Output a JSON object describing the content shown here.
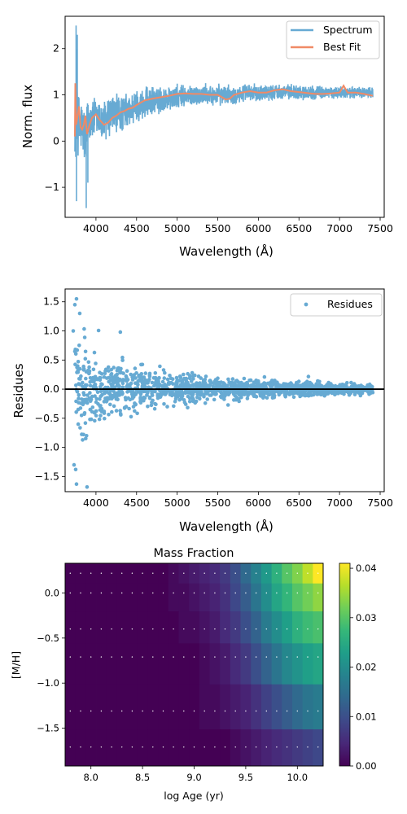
{
  "colors": {
    "spectrum": "#67aad3",
    "best_fit": "#f08a66",
    "residues": "#67aad3",
    "zero_line": "#000000",
    "grid_dots": "#ffffff"
  },
  "chart_data": [
    {
      "type": "line",
      "xlabel": "Wavelength (Å)",
      "ylabel": "Norm. flux",
      "xlim": [
        3620,
        7550
      ],
      "ylim": [
        -1.65,
        2.7
      ],
      "xticks": [
        "4000",
        "4500",
        "5000",
        "5500",
        "6000",
        "6500",
        "7000",
        "7500"
      ],
      "yticks": [
        "−1",
        "0",
        "1",
        "2"
      ],
      "xtick_values": [
        4000,
        4500,
        5000,
        5500,
        6000,
        6500,
        7000,
        7500
      ],
      "ytick_values": [
        -1,
        0,
        1,
        2
      ],
      "legend_position": "upper right",
      "series": [
        {
          "name": "Spectrum",
          "x_range": [
            3740,
            7410
          ],
          "envelope": {
            "x": [
              3740,
              3750,
              3760,
              3780,
              3800,
              3850,
              3880,
              3900,
              3950,
              4000,
              4100,
              4200,
              4300,
              4400,
              4500,
              4700,
              5000,
              5300,
              5600,
              6000,
              6300,
              6600,
              7000,
              7410
            ],
            "mean": [
              0.3,
              0.45,
              1.2,
              0.4,
              0.3,
              0.25,
              -0.1,
              0.55,
              0.45,
              0.5,
              0.4,
              0.55,
              0.6,
              0.65,
              0.75,
              0.85,
              0.95,
              1.0,
              1.0,
              1.05,
              1.08,
              1.05,
              1.05,
              1.05
            ],
            "spread": [
              0.9,
              0.9,
              0.9,
              0.7,
              0.6,
              0.6,
              0.65,
              0.5,
              0.45,
              0.45,
              0.45,
              0.45,
              0.4,
              0.35,
              0.35,
              0.3,
              0.25,
              0.22,
              0.2,
              0.18,
              0.15,
              0.15,
              0.12,
              0.12
            ]
          },
          "min_value": -1.45,
          "max_value": 2.5
        },
        {
          "name": "Best Fit",
          "x": [
            3740,
            3745,
            3755,
            3770,
            3790,
            3810,
            3830,
            3850,
            3870,
            3890,
            3920,
            3950,
            4000,
            4050,
            4100,
            4150,
            4200,
            4250,
            4300,
            4350,
            4400,
            4450,
            4500,
            4600,
            4700,
            4800,
            4900,
            5000,
            5100,
            5200,
            5300,
            5400,
            5500,
            5600,
            5650,
            5700,
            5800,
            5900,
            6000,
            6100,
            6200,
            6300,
            6400,
            6500,
            6600,
            6700,
            6800,
            6900,
            7000,
            7050,
            7100,
            7200,
            7300,
            7410
          ],
          "y": [
            0.1,
            1.25,
            0.35,
            0.5,
            0.75,
            0.3,
            0.25,
            0.35,
            0.55,
            0.15,
            0.35,
            0.5,
            0.58,
            0.45,
            0.35,
            0.4,
            0.5,
            0.55,
            0.62,
            0.65,
            0.7,
            0.72,
            0.78,
            0.88,
            0.92,
            0.95,
            0.98,
            1.02,
            1.03,
            1.02,
            1.02,
            1.0,
            1.0,
            0.9,
            0.92,
            1.0,
            1.05,
            1.08,
            1.05,
            1.05,
            1.1,
            1.12,
            1.08,
            1.06,
            1.04,
            1.02,
            1.02,
            1.03,
            1.05,
            1.2,
            1.05,
            1.05,
            1.02,
            0.98
          ]
        }
      ]
    },
    {
      "type": "scatter",
      "xlabel": "Wavelength (Å)",
      "ylabel": "Residues",
      "xlim": [
        3620,
        7550
      ],
      "ylim": [
        -1.76,
        1.72
      ],
      "xticks": [
        "4000",
        "4500",
        "5000",
        "5500",
        "6000",
        "6500",
        "7000",
        "7500"
      ],
      "yticks": [
        "−1.5",
        "−1.0",
        "−0.5",
        "0.0",
        "0.5",
        "1.0",
        "1.5"
      ],
      "xtick_values": [
        4000,
        4500,
        5000,
        5500,
        6000,
        6500,
        7000,
        7500
      ],
      "ytick_values": [
        -1.5,
        -1.0,
        -0.5,
        0.0,
        0.5,
        1.0,
        1.5
      ],
      "legend_position": "upper right",
      "series": [
        {
          "name": "Residues",
          "x_range": [
            3740,
            7410
          ],
          "spread": {
            "x": [
              3740,
              3800,
              3900,
              4000,
              4300,
              4600,
              5000,
              5500,
              6000,
              6500,
              7000,
              7410
            ],
            "sigma": [
              0.6,
              0.55,
              0.45,
              0.35,
              0.28,
              0.22,
              0.17,
              0.13,
              0.1,
              0.08,
              0.06,
              0.06
            ]
          },
          "extremes": [
            {
              "x": 3760,
              "y": 1.55
            },
            {
              "x": 3740,
              "y": 1.45
            },
            {
              "x": 3800,
              "y": 1.3
            },
            {
              "x": 3750,
              "y": -1.38
            },
            {
              "x": 3760,
              "y": -1.63
            },
            {
              "x": 3890,
              "y": -1.68
            },
            {
              "x": 3730,
              "y": -1.3
            },
            {
              "x": 3720,
              "y": 1.0
            },
            {
              "x": 4300,
              "y": 0.98
            }
          ]
        },
        {
          "name": "",
          "type": "hline",
          "y": 0
        }
      ]
    },
    {
      "type": "heatmap",
      "title": "Mass Fraction",
      "xlabel": "log Age (yr)",
      "ylabel": "[M/H]",
      "xlim": [
        7.75,
        10.25
      ],
      "ylim": [
        -1.92,
        0.33
      ],
      "xticks": [
        "8.0",
        "8.5",
        "9.0",
        "9.5",
        "10.0"
      ],
      "yticks": [
        "−1.5",
        "−1.0",
        "−0.5",
        "0.0"
      ],
      "xtick_values": [
        8.0,
        8.5,
        9.0,
        9.5,
        10.0
      ],
      "ytick_values": [
        -1.5,
        -1.0,
        -0.5,
        0.0
      ],
      "x_centers": [
        7.8,
        7.9,
        8.0,
        8.1,
        8.2,
        8.3,
        8.4,
        8.5,
        8.6,
        8.7,
        8.8,
        8.9,
        9.0,
        9.1,
        9.2,
        9.3,
        9.4,
        9.5,
        9.6,
        9.7,
        9.8,
        9.9,
        10.0,
        10.1,
        10.2
      ],
      "y_centers": [
        -1.71,
        -1.31,
        -0.71,
        -0.4,
        0.0,
        0.22
      ],
      "z": [
        [
          0,
          0,
          0,
          0,
          0,
          0,
          0,
          0,
          0,
          0,
          0,
          0,
          0,
          0,
          0,
          0,
          0.001,
          0.002,
          0.003,
          0.004,
          0.005,
          0.006,
          0.007,
          0.008,
          0.009
        ],
        [
          0,
          0,
          0,
          0,
          0,
          0,
          0,
          0,
          0,
          0,
          0,
          0,
          0,
          0.001,
          0.001,
          0.002,
          0.003,
          0.004,
          0.006,
          0.008,
          0.01,
          0.012,
          0.014,
          0.016,
          0.017
        ],
        [
          0,
          0,
          0,
          0,
          0,
          0,
          0,
          0,
          0,
          0,
          0,
          0,
          0,
          0.001,
          0.002,
          0.003,
          0.005,
          0.007,
          0.01,
          0.013,
          0.016,
          0.019,
          0.021,
          0.023,
          0.024
        ],
        [
          0,
          0,
          0,
          0,
          0,
          0,
          0,
          0,
          0,
          0,
          0,
          0.001,
          0.001,
          0.002,
          0.003,
          0.005,
          0.007,
          0.01,
          0.013,
          0.017,
          0.02,
          0.023,
          0.026,
          0.028,
          0.029
        ],
        [
          0,
          0,
          0,
          0,
          0,
          0,
          0,
          0,
          0,
          0,
          0.001,
          0.001,
          0.002,
          0.003,
          0.004,
          0.006,
          0.009,
          0.012,
          0.016,
          0.02,
          0.024,
          0.027,
          0.03,
          0.032,
          0.034
        ],
        [
          0,
          0,
          0,
          0,
          0,
          0,
          0,
          0,
          0,
          0,
          0.001,
          0.002,
          0.003,
          0.004,
          0.005,
          0.007,
          0.01,
          0.014,
          0.018,
          0.022,
          0.026,
          0.03,
          0.033,
          0.037,
          0.041
        ]
      ],
      "colorbar": {
        "range": [
          0,
          0.041
        ],
        "ticks": [
          "0.00",
          "0.01",
          "0.02",
          "0.03",
          "0.04"
        ],
        "tick_values": [
          0.0,
          0.01,
          0.02,
          0.03,
          0.04
        ],
        "colormap": "viridis"
      }
    }
  ]
}
